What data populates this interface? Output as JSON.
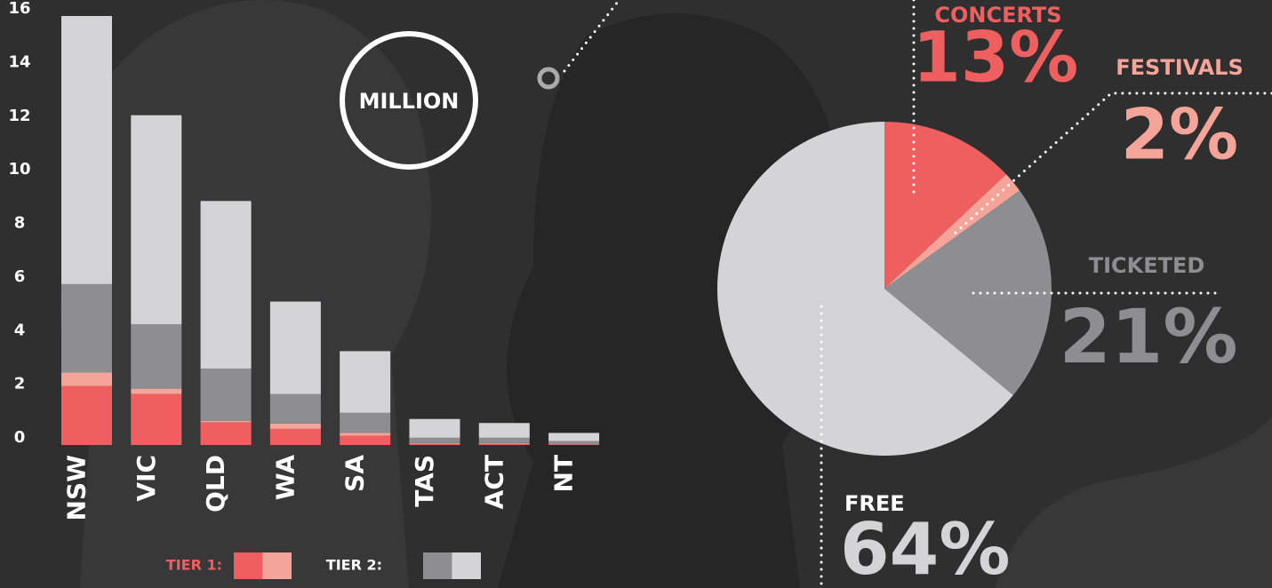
{
  "chart_data": [
    {
      "type": "bar",
      "stacked": true,
      "unit_label": "MILLION",
      "categories": [
        "NSW",
        "VIC",
        "QLD",
        "WA",
        "SA",
        "TAS",
        "ACT",
        "NT"
      ],
      "series": [
        {
          "color": "#ef5f5f",
          "values": [
            2.2,
            1.9,
            0.85,
            0.6,
            0.35,
            0.05,
            0.05,
            0.02
          ]
        },
        {
          "color": "#f4a498",
          "values": [
            0.5,
            0.2,
            0.05,
            0.2,
            0.1,
            0.02,
            0.02,
            0.01
          ]
        },
        {
          "color": "#8e8e92",
          "values": [
            3.3,
            2.4,
            1.95,
            1.1,
            0.75,
            0.2,
            0.2,
            0.12
          ]
        },
        {
          "color": "#d4d4d7",
          "values": [
            10.0,
            7.8,
            6.25,
            3.45,
            2.3,
            0.7,
            0.55,
            0.3
          ]
        }
      ],
      "ylim": [
        0,
        16
      ],
      "yticks": [
        0,
        2,
        4,
        6,
        8,
        10,
        12,
        14,
        16
      ],
      "legend": [
        {
          "label": "TIER 1:"
        },
        {
          "label": "TIER 2:"
        }
      ]
    },
    {
      "type": "pie",
      "categories": [
        "CONCERTS",
        "FESTIVALS",
        "TICKETED",
        "FREE"
      ],
      "values": [
        13,
        2,
        21,
        64
      ],
      "value_labels": [
        "13%",
        "2%",
        "21%",
        "64%"
      ],
      "colors": [
        "#ef5f5f",
        "#f4a498",
        "#8e8e92",
        "#d4d4d7"
      ]
    }
  ]
}
